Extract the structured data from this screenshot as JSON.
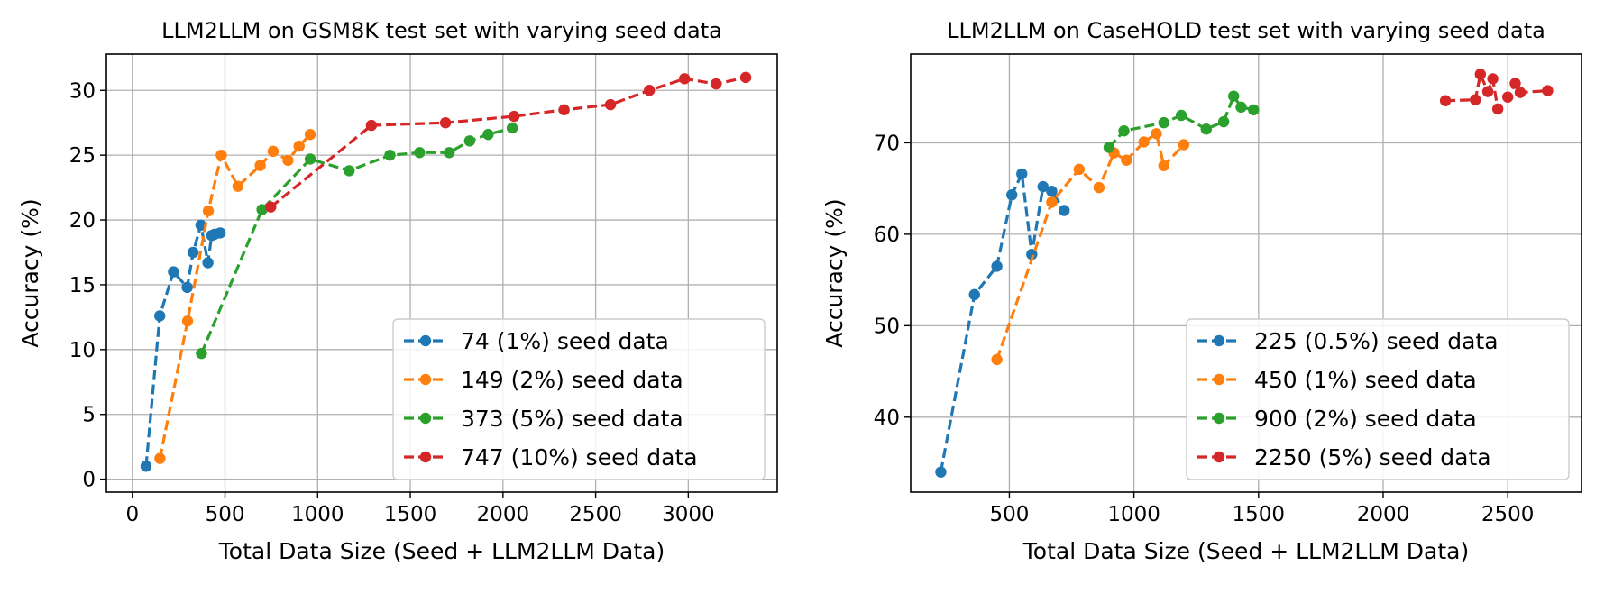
{
  "chart_data": [
    {
      "type": "line",
      "title": "LLM2LLM on GSM8K test set with varying seed data",
      "xlabel": "Total Data Size (Seed + LLM2LLM Data)",
      "ylabel": "Accuracy (%)",
      "xlim": [
        -140,
        3480
      ],
      "ylim": [
        -1,
        32.8
      ],
      "xticks": [
        0,
        500,
        1000,
        1500,
        2000,
        2500,
        3000
      ],
      "yticks": [
        0,
        5,
        10,
        15,
        20,
        25,
        30
      ],
      "grid": true,
      "legend_position": "lower right",
      "series": [
        {
          "name": "74 (1%) seed data",
          "color": "#1f77b4",
          "x": [
            74,
            148,
            222,
            296,
            328,
            370,
            408,
            428,
            444,
            474
          ],
          "y": [
            1.0,
            12.6,
            16.0,
            14.8,
            17.5,
            19.6,
            16.7,
            18.8,
            18.9,
            19.0
          ]
        },
        {
          "name": "149 (2%) seed data",
          "color": "#ff7f0e",
          "x": [
            149,
            298,
            410,
            480,
            570,
            690,
            760,
            840,
            900,
            960
          ],
          "y": [
            1.6,
            12.2,
            20.7,
            25.0,
            22.6,
            24.2,
            25.3,
            24.6,
            25.7,
            26.6
          ]
        },
        {
          "name": "373 (5%) seed data",
          "color": "#2ca02c",
          "x": [
            373,
            700,
            960,
            1170,
            1390,
            1550,
            1710,
            1820,
            1920,
            2050
          ],
          "y": [
            9.7,
            20.8,
            24.7,
            23.8,
            25.0,
            25.2,
            25.2,
            26.1,
            26.6,
            27.1
          ]
        },
        {
          "name": "747 (10%) seed data",
          "color": "#d62728",
          "x": [
            747,
            1290,
            1690,
            2060,
            2330,
            2580,
            2790,
            2980,
            3150,
            3310
          ],
          "y": [
            21.0,
            27.3,
            27.5,
            28.0,
            28.5,
            28.9,
            30.0,
            30.9,
            30.5,
            31.0
          ]
        }
      ]
    },
    {
      "type": "line",
      "title": "LLM2LLM on CaseHOLD test set with varying seed data",
      "xlabel": "Total Data Size (Seed + LLM2LLM Data)",
      "ylabel": "Accuracy (%)",
      "xlim": [
        104,
        2796
      ],
      "ylim": [
        31.8,
        79.7
      ],
      "xticks": [
        500,
        1000,
        1500,
        2000,
        2500
      ],
      "yticks": [
        40,
        50,
        60,
        70
      ],
      "grid": true,
      "legend_position": "lower right",
      "series": [
        {
          "name": "225 (0.5%) seed data",
          "color": "#1f77b4",
          "x": [
            225,
            360,
            450,
            510,
            550,
            590,
            635,
            670,
            720
          ],
          "y": [
            34.0,
            53.4,
            56.5,
            64.3,
            66.6,
            57.8,
            65.2,
            64.7,
            62.6
          ]
        },
        {
          "name": "450 (1%) seed data",
          "color": "#ff7f0e",
          "x": [
            450,
            670,
            780,
            860,
            920,
            970,
            1040,
            1090,
            1120,
            1200
          ],
          "y": [
            46.3,
            63.5,
            67.1,
            65.1,
            68.9,
            68.1,
            70.1,
            71.0,
            67.5,
            69.8
          ]
        },
        {
          "name": "900 (2%) seed data",
          "color": "#2ca02c",
          "x": [
            900,
            960,
            1120,
            1190,
            1290,
            1360,
            1400,
            1430,
            1480
          ],
          "y": [
            69.5,
            71.3,
            72.2,
            73.0,
            71.5,
            72.3,
            75.1,
            73.9,
            73.6
          ]
        },
        {
          "name": "2250 (5%) seed data",
          "color": "#d62728",
          "x": [
            2250,
            2370,
            2390,
            2420,
            2440,
            2460,
            2500,
            2530,
            2550,
            2660
          ],
          "y": [
            74.6,
            74.7,
            77.5,
            75.6,
            77.0,
            73.7,
            75.0,
            76.5,
            75.5,
            75.7
          ]
        }
      ]
    }
  ]
}
